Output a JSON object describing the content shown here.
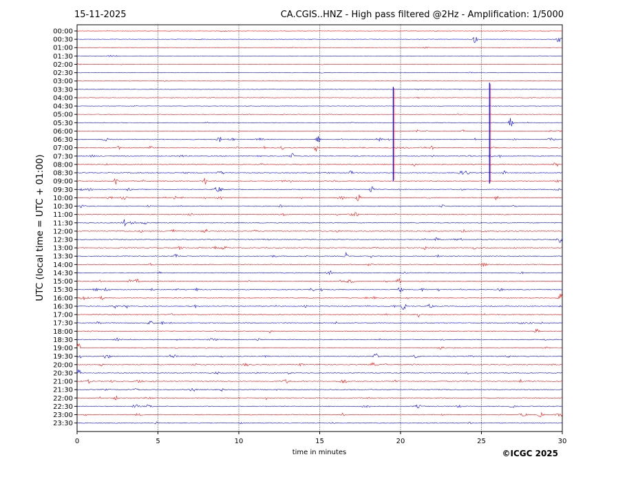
{
  "header": {
    "date": "15-11-2025",
    "title": "CA.CGIS..HNZ - High pass filtered @2Hz - Amplification: 1/5000"
  },
  "footer": {
    "copyright": "©ICGC 2025"
  },
  "chart_data": {
    "type": "line",
    "title": "CA.CGIS..HNZ - High pass filtered @2Hz - Amplification: 1/5000",
    "xlabel": "time in minutes",
    "ylabel": "UTC (local time = UTC + 01:00)",
    "xlim": [
      0,
      30
    ],
    "xticks": [
      0,
      5,
      10,
      15,
      20,
      25,
      30
    ],
    "grid_x": [
      5,
      10,
      15,
      20,
      25
    ],
    "row_labels": [
      "00:00",
      "00:30",
      "01:00",
      "01:30",
      "02:00",
      "02:30",
      "03:00",
      "03:30",
      "04:00",
      "04:30",
      "05:00",
      "05:30",
      "06:00",
      "06:30",
      "07:00",
      "07:30",
      "08:00",
      "08:30",
      "09:00",
      "09:30",
      "10:00",
      "10:30",
      "11:00",
      "11:30",
      "12:00",
      "12:30",
      "13:00",
      "13:30",
      "14:00",
      "14:30",
      "15:00",
      "15:30",
      "16:00",
      "16:30",
      "17:00",
      "17:30",
      "18:00",
      "18:30",
      "19:00",
      "19:30",
      "20:00",
      "20:30",
      "21:00",
      "21:30",
      "22:00",
      "22:30",
      "23:00",
      "23:30"
    ],
    "colors": {
      "even_rows": "#ff0000",
      "odd_rows": "#0000ff"
    },
    "notes": "Seismic helicorder: each row is a 30-minute trace; rows alternate red/blue. Quiet traces until ~06:00, noisier afternoon activity; large spikes near 19.5 and 25.5 min spanning 03:00-09:00 rows.",
    "events": [
      {
        "row": 1,
        "minute": 24.6,
        "amp": 6
      },
      {
        "row": 1,
        "minute": 29.8,
        "amp": 7
      },
      {
        "row": 11,
        "minute": 26.8,
        "amp": 7
      },
      {
        "row": 13,
        "minute": 8.8,
        "amp": 4
      },
      {
        "row": 13,
        "minute": 14.9,
        "amp": 5
      },
      {
        "row": 14,
        "minute": 14.8,
        "amp": 5
      },
      {
        "row": 15,
        "minute": 13.3,
        "amp": 5
      },
      {
        "row": 16,
        "minute": 29.6,
        "amp": 4
      },
      {
        "row": 18,
        "minute": 2.4,
        "amp": 5
      },
      {
        "row": 18,
        "minute": 7.9,
        "amp": 5
      },
      {
        "row": 19,
        "minute": 18.2,
        "amp": 5
      },
      {
        "row": 20,
        "minute": 17.4,
        "amp": 6
      },
      {
        "row": 23,
        "minute": 2.9,
        "amp": 5
      },
      {
        "row": 25,
        "minute": 29.9,
        "amp": 6
      },
      {
        "row": 27,
        "minute": 16.6,
        "amp": 5
      },
      {
        "row": 30,
        "minute": 19.9,
        "amp": 6
      },
      {
        "row": 31,
        "minute": 20.0,
        "amp": 5
      },
      {
        "row": 32,
        "minute": 29.9,
        "amp": 6
      },
      {
        "row": 33,
        "minute": 20.2,
        "amp": 6
      },
      {
        "row": 34,
        "minute": 21.1,
        "amp": 5
      },
      {
        "row": 38,
        "minute": 0.1,
        "amp": 7
      },
      {
        "row": 39,
        "minute": 18.5,
        "amp": 5
      },
      {
        "row": 41,
        "minute": 0.1,
        "amp": 5
      }
    ],
    "spikes": [
      {
        "minute": 19.55,
        "from_row": 6.7,
        "to_row": 18.0
      },
      {
        "minute": 25.5,
        "from_row": 6.2,
        "to_row": 18.3
      }
    ]
  }
}
